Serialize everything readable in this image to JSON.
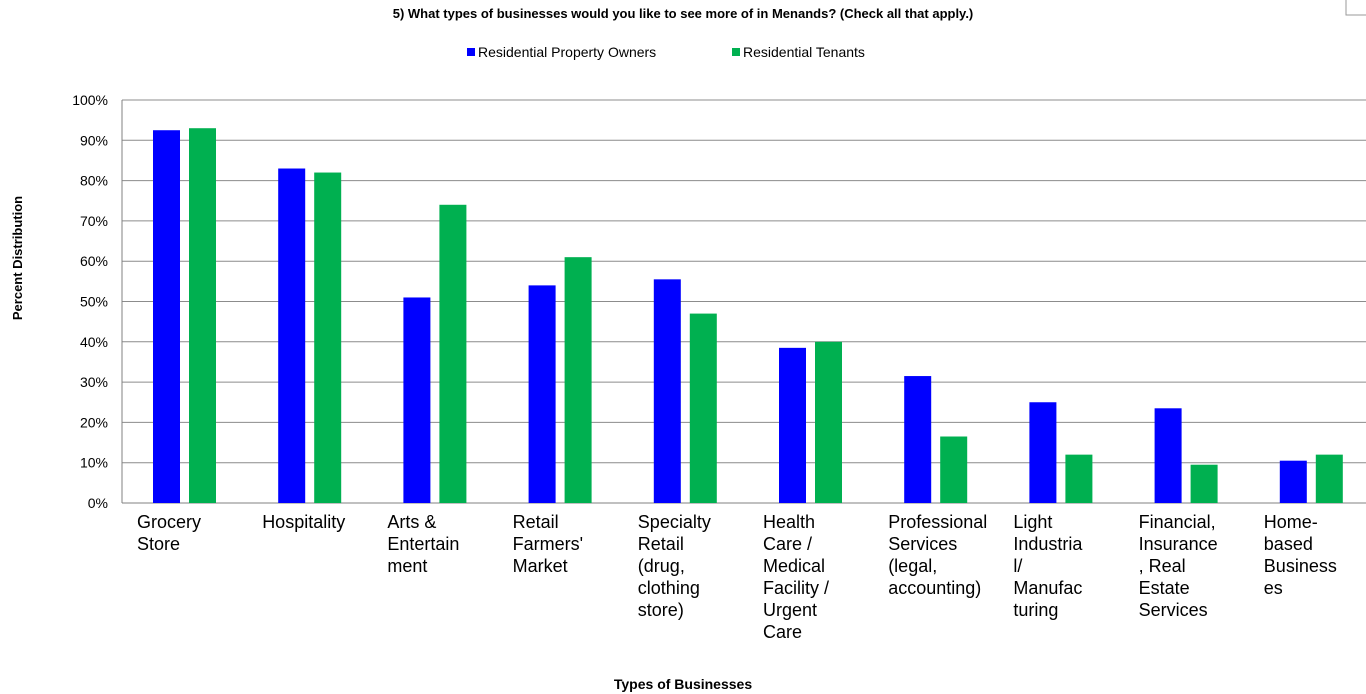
{
  "chart_data": {
    "type": "bar",
    "title": "5) What types of businesses would you like to see more of in Menands? (Check all that apply.)",
    "xlabel": "Types of Businesses",
    "ylabel": "Percent Distribution",
    "ylim": [
      0,
      100
    ],
    "yticks": [
      "0%",
      "10%",
      "20%",
      "30%",
      "40%",
      "50%",
      "60%",
      "70%",
      "80%",
      "90%",
      "100%"
    ],
    "grid": true,
    "legend_position": "top",
    "categories": [
      "Grocery Store",
      "Hospitality",
      "Arts & Entertainment",
      "Retail Farmers' Market",
      "Specialty Retail (drug, clothing store)",
      "Health Care / Medical Facility / Urgent Care",
      "Professional Services (legal, accounting)",
      "Light Industrial/ Manufacturing",
      "Financial, Insurance, Real Estate Services",
      "Home-based Businesses"
    ],
    "category_label_lines": [
      [
        "Grocery",
        "Store"
      ],
      [
        "Hospitality"
      ],
      [
        "Arts &",
        "Entertain",
        "ment"
      ],
      [
        "Retail",
        "Farmers'",
        "Market"
      ],
      [
        "Specialty",
        "Retail",
        "(drug,",
        "clothing",
        "store)"
      ],
      [
        "Health",
        "Care /",
        "Medical",
        "Facility /",
        "Urgent",
        "Care"
      ],
      [
        "Professional",
        "Services",
        "(legal,",
        "accounting)"
      ],
      [
        "Light",
        "Industria",
        "l/",
        "Manufac",
        "turing"
      ],
      [
        "Financial,",
        "Insurance",
        ", Real",
        "Estate",
        "Services"
      ],
      [
        "Home-",
        "based",
        "Business",
        "es"
      ]
    ],
    "series": [
      {
        "name": "Residential Property Owners",
        "color": "#0000ff",
        "values": [
          92.5,
          83,
          51,
          54,
          55.5,
          38.5,
          31.5,
          25,
          23.5,
          10.5
        ]
      },
      {
        "name": "Residential Tenants",
        "color": "#00b050",
        "values": [
          93,
          82,
          74,
          61,
          47,
          40,
          16.5,
          12,
          9.5,
          12
        ]
      }
    ]
  }
}
